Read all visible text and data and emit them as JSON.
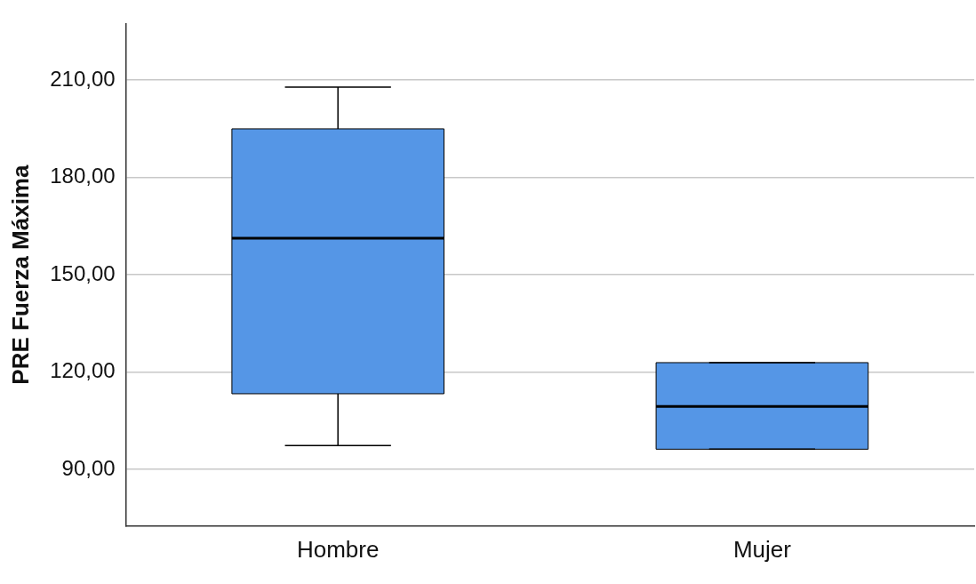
{
  "chart_data": {
    "type": "box",
    "ylabel": "PRE Fuerza Máxima",
    "categories": [
      "Hombre",
      "Mujer"
    ],
    "boxes": [
      {
        "low": 97.3,
        "q1": 113.3,
        "median": 161.3,
        "q3": 195,
        "high": 207.9
      },
      {
        "low": 96.2,
        "q1": 96.2,
        "median": 109.4,
        "q3": 122.9,
        "high": 122.9
      }
    ],
    "color": "#5596e6",
    "ylim": [
      72.5,
      227.5
    ],
    "yticks": [
      {
        "value": 90,
        "label": "90,00"
      },
      {
        "value": 120,
        "label": "120,00"
      },
      {
        "value": 150,
        "label": "150,00"
      },
      {
        "value": 180,
        "label": "180,00"
      },
      {
        "value": 210,
        "label": "210,00"
      }
    ],
    "grid": "y"
  }
}
